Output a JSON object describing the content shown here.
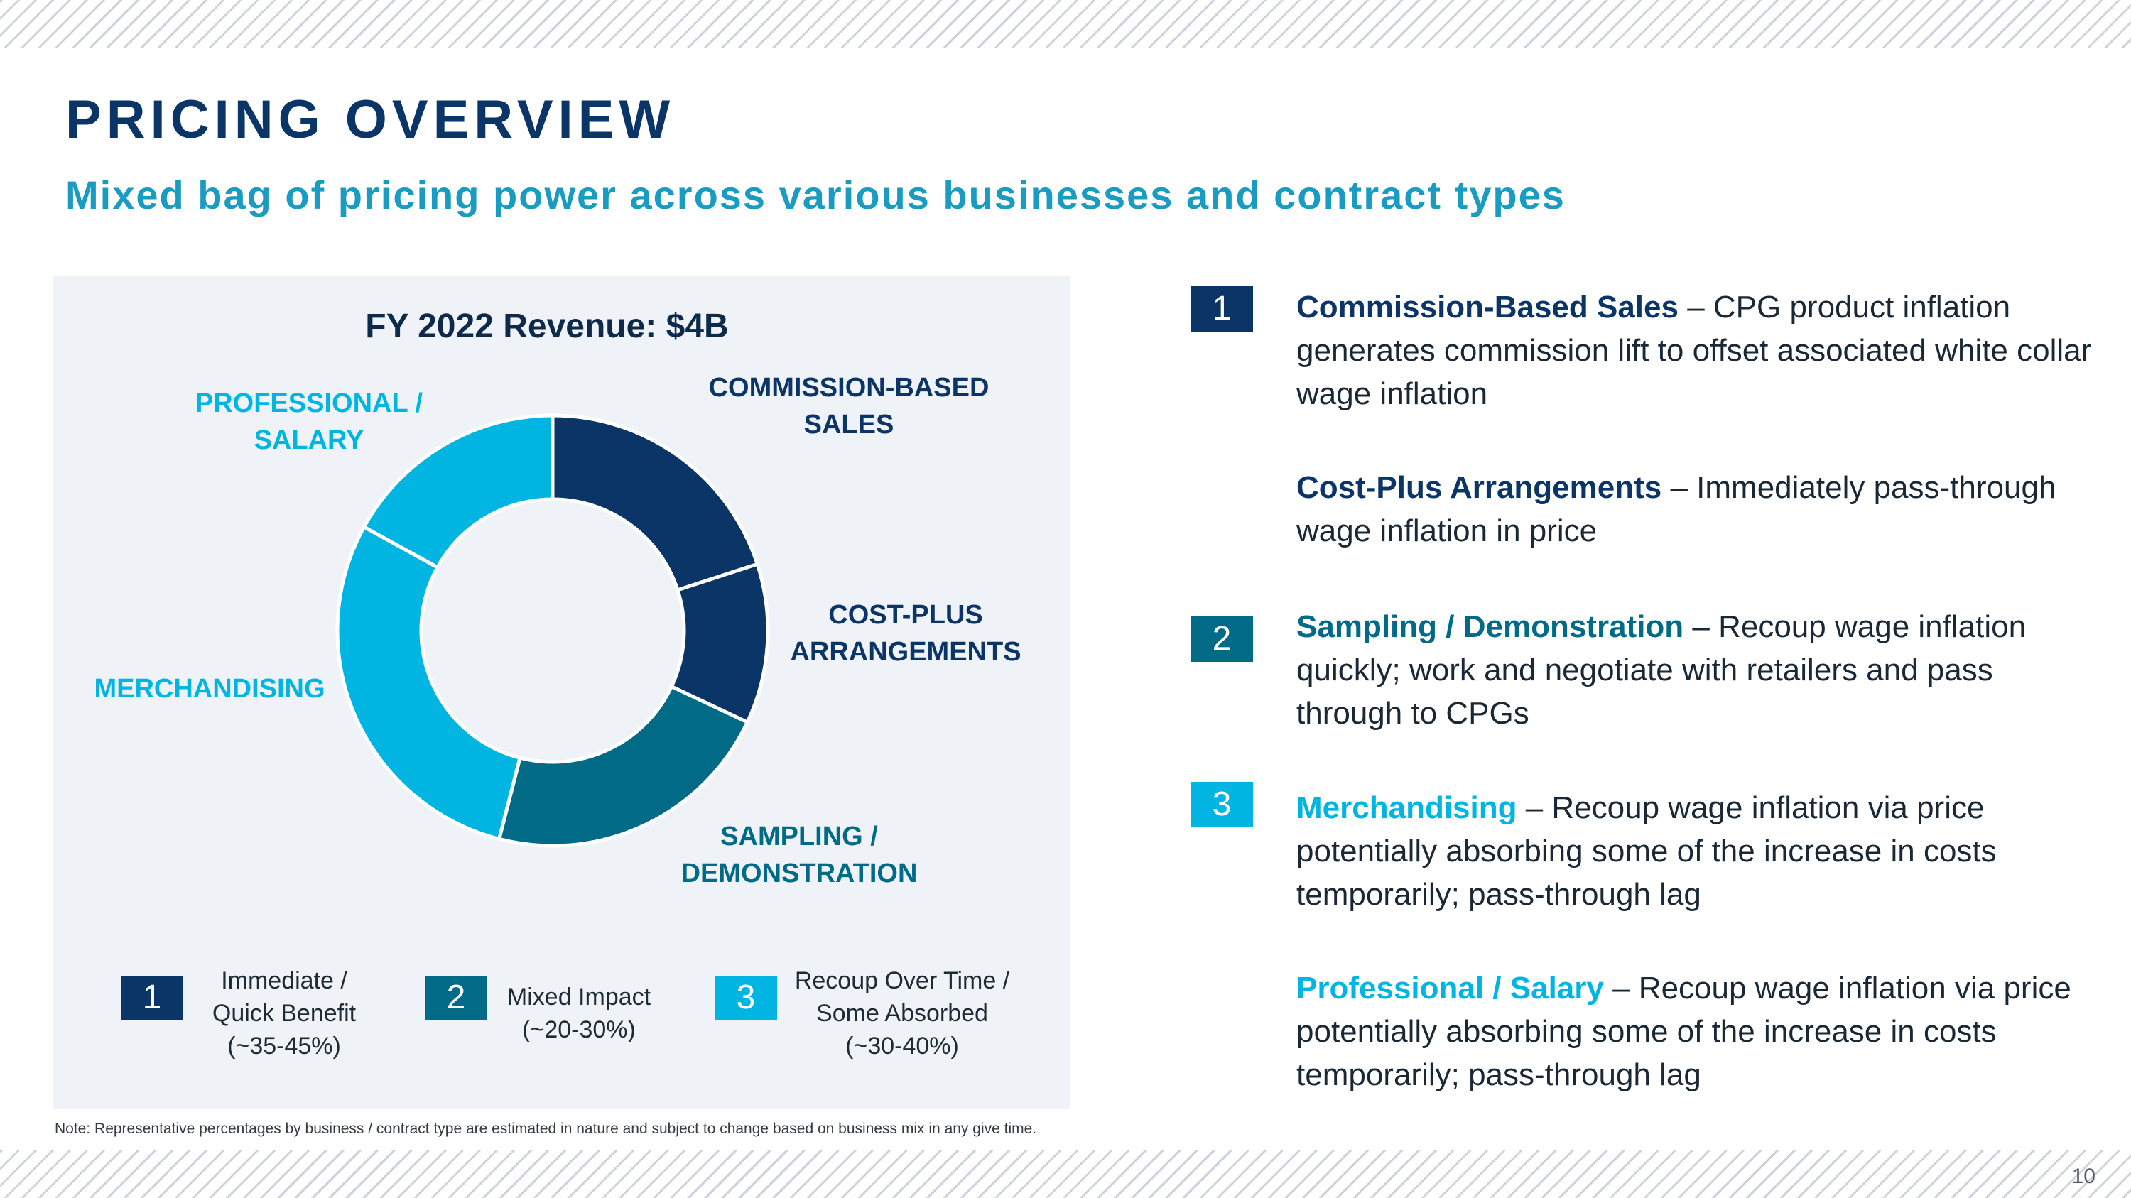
{
  "page": {
    "title": "PRICING OVERVIEW",
    "subtitle": "Mixed bag of pricing power across various businesses and contract types",
    "page_number": "10",
    "note": "Note: Representative percentages by business / contract type are estimated in nature and subject to change based on business mix in any give time."
  },
  "colors": {
    "navy": "#0a3566",
    "teal": "#006a87",
    "cyan": "#00b5e2",
    "title_navy": "#0a3566",
    "subtitle_cyan": "#1a9bc2"
  },
  "chart_data": {
    "type": "pie",
    "title": "FY 2022 Revenue: $4B",
    "slices": [
      {
        "label": "COMMISSION-BASED SALES",
        "value": 20,
        "color": "#0a3566"
      },
      {
        "label": "COST-PLUS ARRANGEMENTS",
        "value": 12,
        "color": "#0a3566"
      },
      {
        "label": "SAMPLING / DEMONSTRATION",
        "value": 22,
        "color": "#006a87"
      },
      {
        "label": "MERCHANDISING",
        "value": 29,
        "color": "#00b5e2"
      },
      {
        "label": "PROFESSIONAL / SALARY",
        "value": 17,
        "color": "#00b5e2"
      }
    ],
    "legend": [
      {
        "number": "1",
        "lines": [
          "Immediate /",
          "Quick Benefit",
          "(~35-45%)"
        ],
        "color": "#0a3566"
      },
      {
        "number": "2",
        "lines": [
          "Mixed Impact",
          "(~20-30%)"
        ],
        "color": "#006a87"
      },
      {
        "number": "3",
        "lines": [
          "Recoup Over Time /",
          "Some Absorbed",
          "(~30-40%)"
        ],
        "color": "#00b5e2"
      }
    ]
  },
  "slice_labels": {
    "commission": [
      "COMMISSION-BASED",
      "SALES"
    ],
    "cost_plus": [
      "COST-PLUS",
      "ARRANGEMENTS"
    ],
    "sampling": [
      "SAMPLING /",
      "DEMONSTRATION"
    ],
    "merchandising": [
      "MERCHANDISING"
    ],
    "professional": [
      "PROFESSIONAL /",
      "SALARY"
    ]
  },
  "details": {
    "badges": [
      {
        "number": "1",
        "color": "#0a3566"
      },
      {
        "number": "2",
        "color": "#006a87"
      },
      {
        "number": "3",
        "color": "#00b5e2"
      }
    ],
    "items": [
      {
        "head": "Commission-Based Sales",
        "dash": " – ",
        "body": "CPG product inflation generates commission lift to offset associated white collar wage inflation",
        "head_color": "#0a3566"
      },
      {
        "head": "Cost-Plus Arrangements",
        "dash": " – ",
        "body": "Immediately pass-through wage inflation in price",
        "head_color": "#0a3566"
      },
      {
        "head": "Sampling / Demonstration",
        "dash": " – ",
        "body": "Recoup wage inflation quickly; work and negotiate with retailers and pass through to CPGs",
        "head_color": "#006a87"
      },
      {
        "head": "Merchandising",
        "dash": " – ",
        "body": "Recoup wage inflation via price potentially absorbing some of the increase in costs temporarily; pass-through lag",
        "head_color": "#00b5e2"
      },
      {
        "head": "Professional / Salary",
        "dash": " – ",
        "body": "Recoup wage inflation via price potentially absorbing some of the increase in costs temporarily; pass-through lag",
        "head_color": "#00b5e2"
      }
    ]
  }
}
